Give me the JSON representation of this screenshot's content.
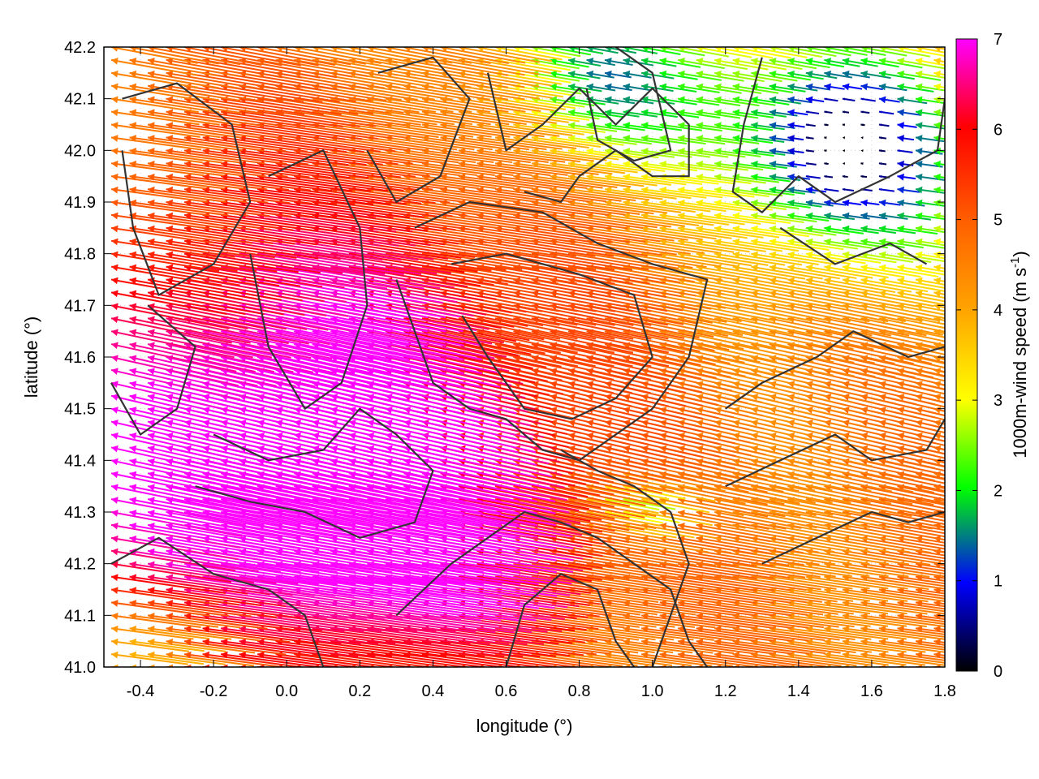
{
  "chart_data": {
    "type": "quiver",
    "xlabel": "longitude (°)",
    "ylabel": "latitude (°)",
    "colorbar_label": "1000m-wind speed (m s",
    "colorbar_label_sup": "-1",
    "colorbar_label_close": ")",
    "xlim": [
      -0.5,
      1.8
    ],
    "ylim": [
      41.0,
      42.2
    ],
    "clim": [
      0,
      7
    ],
    "x_ticks": [
      -0.4,
      -0.2,
      0.0,
      0.2,
      0.4,
      0.6,
      0.8,
      1.0,
      1.2,
      1.4,
      1.6,
      1.8
    ],
    "x_tick_labels": [
      "-0.4",
      "-0.2",
      "0.0",
      "0.2",
      "0.4",
      "0.6",
      "0.8",
      "1.0",
      "1.2",
      "1.4",
      "1.6",
      "1.8"
    ],
    "y_ticks": [
      41.0,
      41.1,
      41.2,
      41.3,
      41.4,
      41.5,
      41.6,
      41.7,
      41.8,
      41.9,
      42.0,
      42.1,
      42.2
    ],
    "y_tick_labels": [
      "41.0",
      "41.1",
      "41.2",
      "41.3",
      "41.4",
      "41.5",
      "41.6",
      "41.7",
      "41.8",
      "41.9",
      "42.0",
      "42.1",
      "42.2"
    ],
    "colorbar_ticks": [
      0,
      1,
      2,
      3,
      4,
      5,
      6,
      7
    ],
    "colorbar_tick_labels": [
      "0",
      "1",
      "2",
      "3",
      "4",
      "5",
      "6",
      "7"
    ],
    "colormap": [
      "#000000",
      "#0000ff",
      "#00ff00",
      "#ffff00",
      "#ffa500",
      "#ff6000",
      "#ff0000",
      "#ff00ff"
    ],
    "contour_color": "#333333",
    "grid": "dotted",
    "wind_field": {
      "direction": "westward (from east), slightly tilted",
      "grid_spacing_deg": [
        0.05,
        0.025
      ],
      "speed_regions": [
        {
          "name": "strong",
          "speed_ms": 7,
          "area": "southwest half, lon -0.5 to 0.6"
        },
        {
          "name": "moderate",
          "speed_ms": 4.5,
          "area": "southeast, lon 0.8 to 1.8, lat 41.0 to 41.6"
        },
        {
          "name": "weak",
          "speed_ms": 2,
          "area": "north-centre, lon 0.5 to 1.2, lat 41.9 to 42.2"
        },
        {
          "name": "calm",
          "speed_ms": 0.5,
          "area": "northeast, lon 1.2 to 1.8, lat 41.8 to 42.2"
        }
      ]
    },
    "contours": [
      [
        [
          -0.45,
          42.1
        ],
        [
          -0.3,
          42.13
        ],
        [
          -0.15,
          42.05
        ],
        [
          -0.1,
          41.9
        ],
        [
          -0.2,
          41.78
        ],
        [
          -0.35,
          41.72
        ],
        [
          -0.42,
          41.85
        ],
        [
          -0.45,
          42.0
        ]
      ],
      [
        [
          -0.38,
          41.7
        ],
        [
          -0.25,
          41.62
        ],
        [
          -0.3,
          41.5
        ],
        [
          -0.4,
          41.45
        ],
        [
          -0.48,
          41.55
        ]
      ],
      [
        [
          -0.05,
          41.95
        ],
        [
          0.1,
          42.0
        ],
        [
          0.2,
          41.85
        ],
        [
          0.22,
          41.7
        ],
        [
          0.15,
          41.55
        ],
        [
          0.05,
          41.5
        ],
        [
          -0.05,
          41.62
        ],
        [
          -0.1,
          41.8
        ]
      ],
      [
        [
          0.25,
          42.15
        ],
        [
          0.4,
          42.18
        ],
        [
          0.5,
          42.1
        ],
        [
          0.42,
          41.95
        ],
        [
          0.3,
          41.9
        ],
        [
          0.22,
          42.0
        ]
      ],
      [
        [
          0.55,
          42.15
        ],
        [
          0.6,
          42.0
        ],
        [
          0.7,
          42.05
        ],
        [
          0.8,
          42.12
        ],
        [
          0.9,
          42.05
        ],
        [
          1.0,
          42.12
        ],
        [
          1.1,
          42.05
        ],
        [
          1.1,
          41.95
        ],
        [
          1.0,
          41.95
        ],
        [
          0.9,
          42.0
        ],
        [
          0.8,
          41.95
        ],
        [
          0.75,
          41.9
        ],
        [
          0.65,
          41.92
        ]
      ],
      [
        [
          0.9,
          42.2
        ],
        [
          1.0,
          42.15
        ],
        [
          1.05,
          42.0
        ],
        [
          0.95,
          41.98
        ],
        [
          0.85,
          42.02
        ],
        [
          0.82,
          42.12
        ]
      ],
      [
        [
          1.3,
          42.18
        ],
        [
          1.25,
          42.05
        ],
        [
          1.22,
          41.92
        ],
        [
          1.3,
          41.88
        ],
        [
          1.4,
          41.95
        ],
        [
          1.5,
          41.9
        ],
        [
          1.65,
          41.95
        ],
        [
          1.78,
          42.0
        ],
        [
          1.8,
          42.1
        ]
      ],
      [
        [
          1.35,
          41.85
        ],
        [
          1.5,
          41.78
        ],
        [
          1.65,
          41.82
        ],
        [
          1.75,
          41.78
        ]
      ],
      [
        [
          0.35,
          41.85
        ],
        [
          0.5,
          41.9
        ],
        [
          0.7,
          41.88
        ],
        [
          0.85,
          41.82
        ],
        [
          1.0,
          41.78
        ],
        [
          1.15,
          41.75
        ],
        [
          1.1,
          41.6
        ],
        [
          1.0,
          41.5
        ],
        [
          0.9,
          41.45
        ],
        [
          0.8,
          41.4
        ],
        [
          0.7,
          41.42
        ],
        [
          0.6,
          41.48
        ],
        [
          0.5,
          41.5
        ],
        [
          0.4,
          41.55
        ],
        [
          0.35,
          41.65
        ],
        [
          0.3,
          41.75
        ]
      ],
      [
        [
          0.45,
          41.78
        ],
        [
          0.6,
          41.8
        ],
        [
          0.8,
          41.76
        ],
        [
          0.95,
          41.72
        ],
        [
          1.0,
          41.6
        ],
        [
          0.9,
          41.52
        ],
        [
          0.78,
          41.48
        ],
        [
          0.65,
          41.5
        ],
        [
          0.55,
          41.6
        ],
        [
          0.48,
          41.68
        ]
      ],
      [
        [
          -0.2,
          41.45
        ],
        [
          -0.05,
          41.4
        ],
        [
          0.1,
          41.42
        ],
        [
          0.2,
          41.5
        ],
        [
          0.3,
          41.45
        ],
        [
          0.4,
          41.38
        ],
        [
          0.35,
          41.28
        ],
        [
          0.2,
          41.25
        ],
        [
          0.05,
          41.3
        ],
        [
          -0.1,
          41.32
        ],
        [
          -0.25,
          41.35
        ]
      ],
      [
        [
          0.3,
          41.1
        ],
        [
          0.45,
          41.2
        ],
        [
          0.55,
          41.25
        ],
        [
          0.65,
          41.3
        ],
        [
          0.75,
          41.28
        ],
        [
          0.85,
          41.25
        ],
        [
          0.95,
          41.2
        ],
        [
          1.05,
          41.15
        ],
        [
          1.1,
          41.05
        ],
        [
          1.15,
          41.0
        ]
      ],
      [
        [
          0.6,
          41.0
        ],
        [
          0.65,
          41.12
        ],
        [
          0.75,
          41.18
        ],
        [
          0.85,
          41.15
        ],
        [
          0.9,
          41.05
        ],
        [
          0.95,
          41.0
        ]
      ],
      [
        [
          1.2,
          41.5
        ],
        [
          1.3,
          41.55
        ],
        [
          1.45,
          41.6
        ],
        [
          1.55,
          41.65
        ],
        [
          1.7,
          41.6
        ],
        [
          1.8,
          41.62
        ]
      ],
      [
        [
          1.2,
          41.35
        ],
        [
          1.35,
          41.4
        ],
        [
          1.5,
          41.45
        ],
        [
          1.6,
          41.4
        ],
        [
          1.75,
          41.42
        ],
        [
          1.8,
          41.48
        ]
      ],
      [
        [
          1.3,
          41.2
        ],
        [
          1.45,
          41.25
        ],
        [
          1.6,
          41.3
        ],
        [
          1.7,
          41.28
        ],
        [
          1.8,
          41.3
        ]
      ],
      [
        [
          -0.48,
          41.2
        ],
        [
          -0.35,
          41.25
        ],
        [
          -0.2,
          41.18
        ],
        [
          -0.05,
          41.15
        ],
        [
          0.05,
          41.1
        ],
        [
          0.1,
          41.0
        ]
      ],
      [
        [
          0.75,
          41.42
        ],
        [
          0.85,
          41.38
        ],
        [
          0.95,
          41.35
        ],
        [
          1.05,
          41.3
        ],
        [
          1.1,
          41.2
        ],
        [
          1.05,
          41.1
        ],
        [
          1.0,
          41.0
        ]
      ]
    ]
  }
}
